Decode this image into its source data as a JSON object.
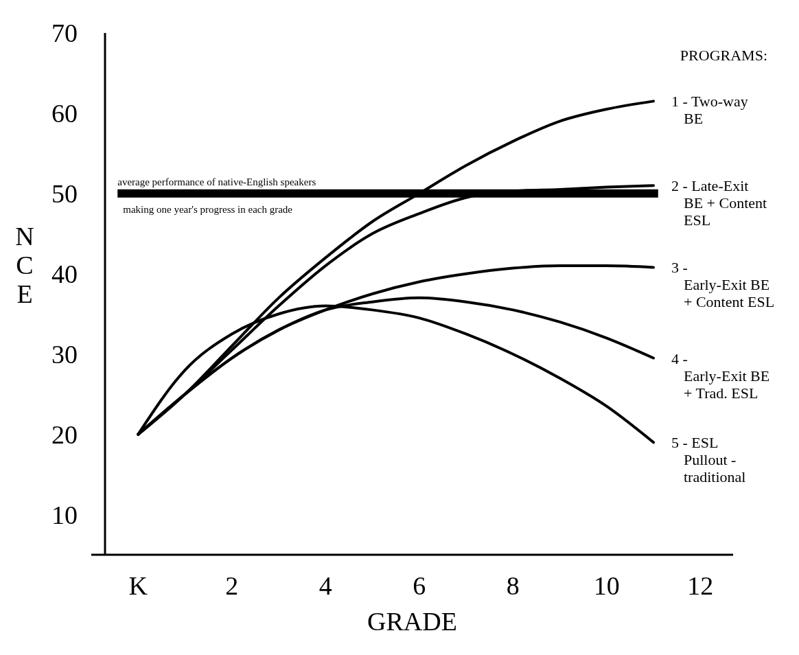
{
  "chart_data": {
    "type": "line",
    "xlabel": "GRADE",
    "ylabel": "NCE",
    "legend_title": "PROGRAMS:",
    "xlim": [
      -1,
      12.7
    ],
    "xticks": [
      {
        "value": 0,
        "label": "K"
      },
      2,
      4,
      6,
      8,
      10,
      12
    ],
    "ylim": [
      5,
      70
    ],
    "yticks": [
      10,
      20,
      30,
      40,
      50,
      60,
      70
    ],
    "x": [
      0,
      1,
      2,
      3,
      4,
      5,
      6,
      7,
      8,
      9,
      10,
      11
    ],
    "series": [
      {
        "name": "1 - Two-way BE",
        "color": "#000000",
        "values": [
          20,
          25,
          31,
          37,
          42,
          46.5,
          50,
          53.5,
          56.5,
          59,
          60.5,
          61.5
        ]
      },
      {
        "name": "2 - Late-Exit BE + Content ESL",
        "color": "#000000",
        "values": [
          20,
          25,
          30.5,
          36,
          41,
          45,
          47.5,
          49.5,
          50.3,
          50.5,
          50.8,
          51
        ]
      },
      {
        "name": "3 - Early-Exit BE + Content ESL",
        "color": "#000000",
        "values": [
          20,
          25,
          29.5,
          33,
          35.5,
          37.5,
          39,
          40,
          40.7,
          41,
          41,
          40.8
        ]
      },
      {
        "name": "4 - Early-Exit BE + Trad. ESL",
        "color": "#000000",
        "values": [
          20,
          25,
          29.5,
          33,
          35.5,
          36.5,
          37,
          36.5,
          35.5,
          34,
          32,
          29.5
        ]
      },
      {
        "name": "5 - ESL Pullout - traditional",
        "color": "#000000",
        "values": [
          20,
          28,
          32.5,
          35,
          36,
          35.5,
          34.5,
          32.5,
          30,
          27,
          23.5,
          19
        ]
      }
    ],
    "ref_lines": [
      {
        "axis": "y",
        "value": 50,
        "label": "average performance of native-English speakers",
        "color": "#000000"
      }
    ],
    "annotations": [
      "making one year's progress in each grade"
    ],
    "legend": "right",
    "grid": false,
    "marker": "none",
    "line_style": "solid"
  }
}
